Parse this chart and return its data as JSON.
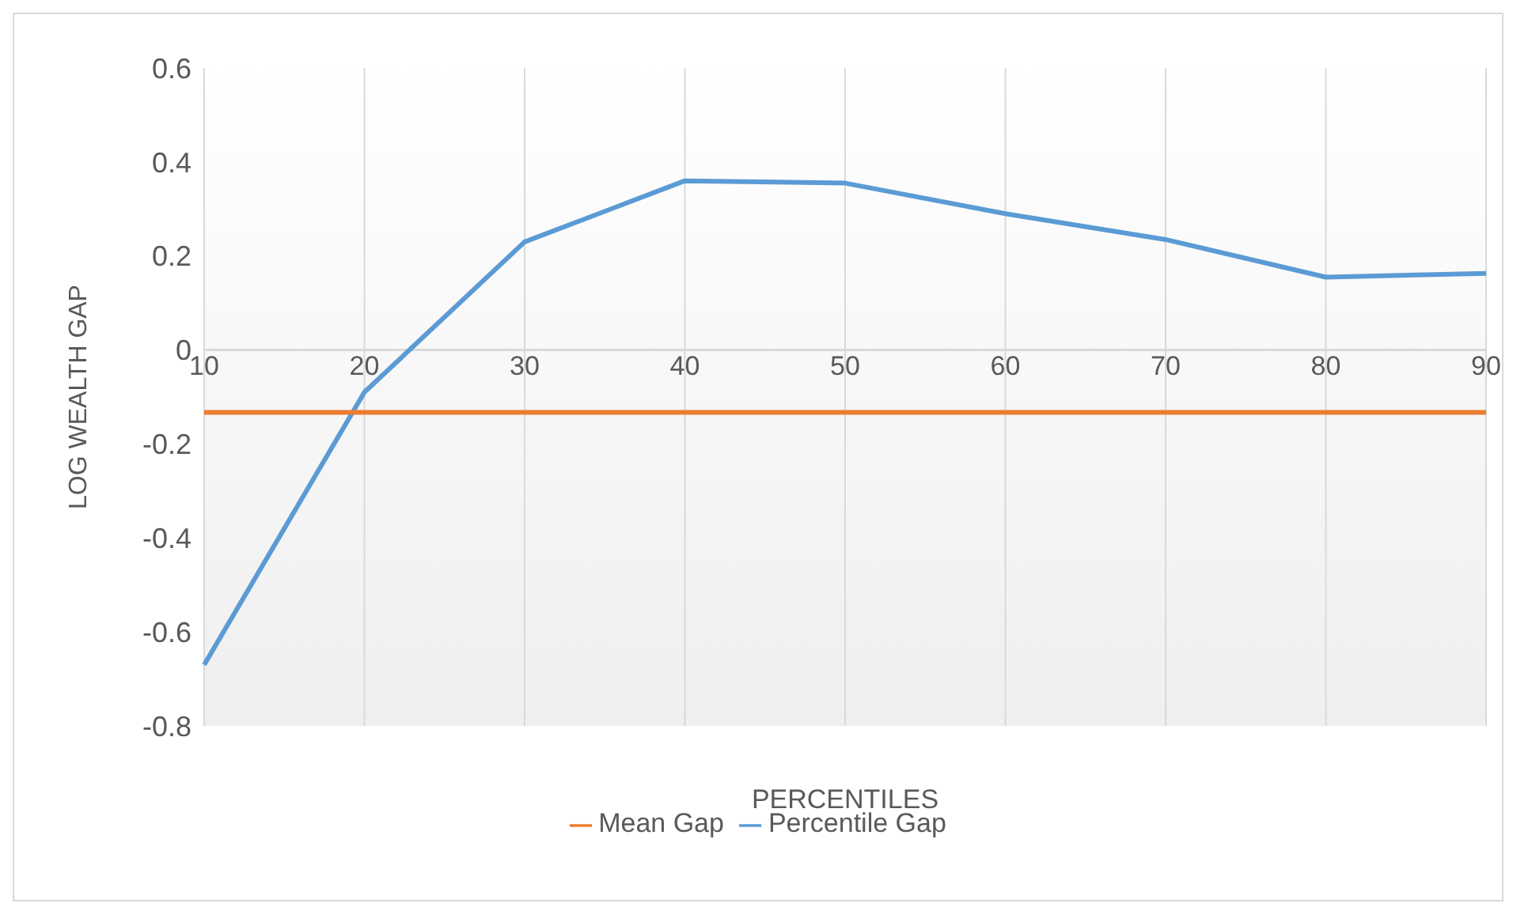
{
  "chart_data": {
    "type": "line",
    "xlabel": "PERCENTILES",
    "ylabel": "LOG WEALTH GAP",
    "categories": [
      "10",
      "20",
      "30",
      "40",
      "50",
      "60",
      "70",
      "80",
      "90"
    ],
    "series": [
      {
        "name": "Percentile Gap",
        "color": "#5b9bd5",
        "values": [
          -0.67,
          -0.09,
          0.23,
          0.36,
          0.355,
          0.29,
          0.235,
          0.155,
          0.163
        ]
      },
      {
        "name": "Mean Gap",
        "color": "#ed7d31",
        "values": [
          -0.133,
          -0.133,
          -0.133,
          -0.133,
          -0.133,
          -0.133,
          -0.133,
          -0.133,
          -0.133
        ]
      }
    ],
    "ylim": [
      -0.8,
      0.6
    ],
    "yticks": [
      -0.8,
      -0.6,
      -0.4,
      -0.2,
      0,
      0.2,
      0.4,
      0.6
    ],
    "grid": "x",
    "legend": "bottom",
    "marker": "none",
    "line_style": "solid"
  }
}
